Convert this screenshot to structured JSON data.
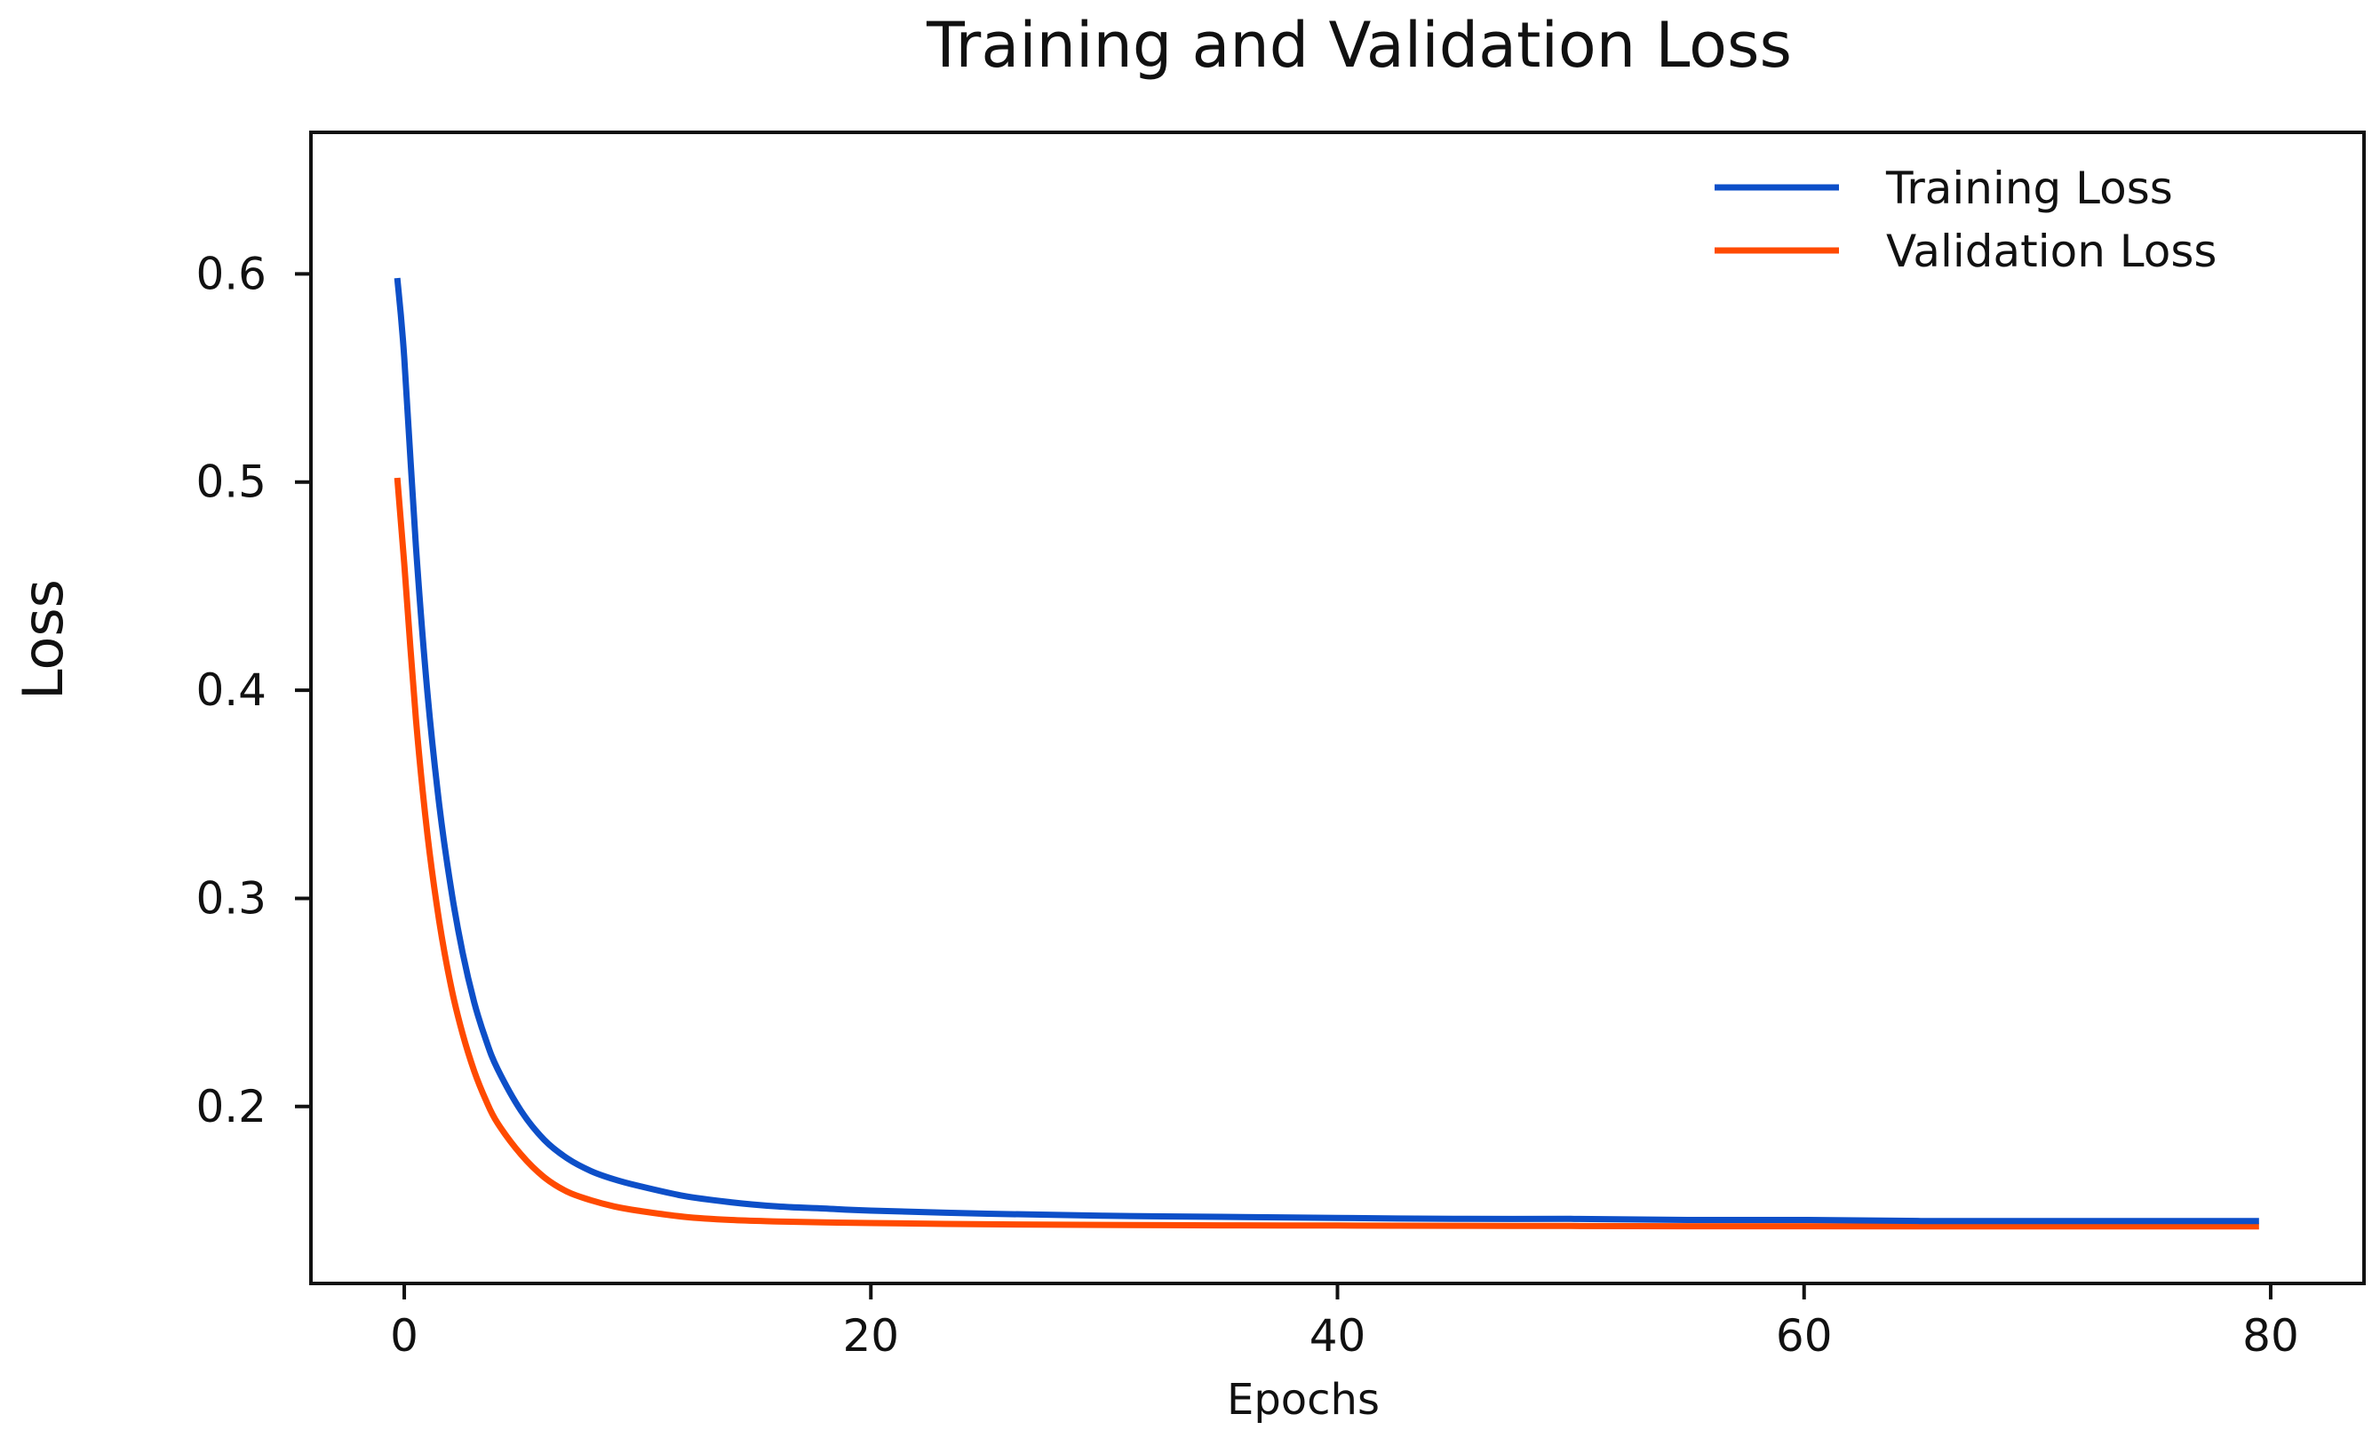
{
  "chart_data": {
    "type": "line",
    "title": "Training and Validation Loss",
    "xlabel": "Epochs",
    "ylabel": "Loss",
    "xlim": [
      -4,
      84
    ],
    "ylim": [
      0.115,
      0.668
    ],
    "xticks": [
      0,
      20,
      40,
      60,
      80
    ],
    "yticks": [
      0.2,
      0.3,
      0.4,
      0.5,
      0.6
    ],
    "xtick_labels": [
      "0",
      "20",
      "40",
      "60",
      "80"
    ],
    "ytick_labels": [
      "0.2",
      "0.3",
      "0.4",
      "0.5",
      "0.6"
    ],
    "grid": false,
    "legend_position": "top-right",
    "x": [
      -0.3,
      0,
      0.5,
      1,
      1.5,
      2,
      2.5,
      3,
      3.5,
      4,
      5,
      6,
      7,
      8,
      9,
      10,
      12,
      14,
      16,
      18,
      20,
      25,
      30,
      35,
      40,
      45,
      50,
      55,
      60,
      65,
      70,
      75,
      79.5
    ],
    "series": [
      {
        "name": "Training Loss",
        "color": "#0d4fc8",
        "values": [
          0.598,
          0.56,
          0.469,
          0.398,
          0.345,
          0.305,
          0.274,
          0.25,
          0.232,
          0.218,
          0.198,
          0.184,
          0.175,
          0.169,
          0.165,
          0.162,
          0.157,
          0.154,
          0.152,
          0.151,
          0.15,
          0.1485,
          0.1475,
          0.147,
          0.1465,
          0.146,
          0.146,
          0.1455,
          0.1455,
          0.145,
          0.145,
          0.145,
          0.145
        ]
      },
      {
        "name": "Validation Loss",
        "color": "#ff4a00",
        "values": [
          0.502,
          0.461,
          0.386,
          0.33,
          0.289,
          0.258,
          0.235,
          0.217,
          0.203,
          0.192,
          0.177,
          0.166,
          0.159,
          0.155,
          0.152,
          0.15,
          0.147,
          0.1455,
          0.1448,
          0.1443,
          0.144,
          0.1434,
          0.1431,
          0.1429,
          0.1428,
          0.1427,
          0.1426,
          0.1425,
          0.1425,
          0.1424,
          0.1424,
          0.1424,
          0.1424
        ]
      }
    ]
  }
}
